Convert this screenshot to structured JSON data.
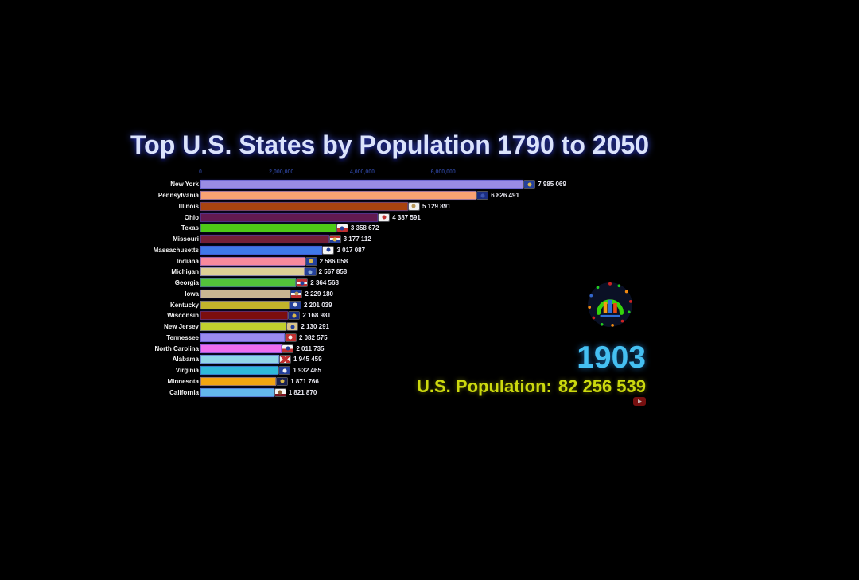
{
  "title": "Top U.S. States by Population 1790 to 2050",
  "overlay": {
    "year": "1903",
    "population_label": "U.S. Population:",
    "population_value": "82 256 539",
    "year_color": "#45c0f2",
    "population_color": "#ccd90e"
  },
  "icons": {
    "channel_logo": "bar-chart-circle-logo",
    "watermark": "play-badge"
  },
  "chart_data": {
    "type": "bar",
    "orientation": "horizontal",
    "title": "Top U.S. States by Population 1790 to 2050",
    "xlabel": "",
    "ylabel": "",
    "xlim": [
      0,
      8000000
    ],
    "grid": false,
    "legend": false,
    "x_ticks": [
      {
        "value": 0,
        "label": "0"
      },
      {
        "value": 2000000,
        "label": "2,000,000"
      },
      {
        "value": 4000000,
        "label": "4,000,000"
      },
      {
        "value": 6000000,
        "label": "6,000,000"
      }
    ],
    "bars": [
      {
        "state": "New York",
        "value": 7985069,
        "label": "7 985 069",
        "color": "#9a8ce4",
        "flag": {
          "stripes": [
            "#24409a"
          ],
          "emblem": "#d8b84a"
        }
      },
      {
        "state": "Pennsylvania",
        "value": 6826491,
        "label": "6 826 491",
        "color": "#f9a272",
        "flag": {
          "stripes": [
            "#1a2d80"
          ],
          "emblem": "#3c55b0"
        }
      },
      {
        "state": "Illinois",
        "value": 5129891,
        "label": "5 129 891",
        "color": "#a8430f",
        "flag": {
          "stripes": [
            "#f2f2f2"
          ],
          "emblem": "#b8985a"
        }
      },
      {
        "state": "Ohio",
        "value": 4387591,
        "label": "4 387 591",
        "color": "#621a50",
        "flag": {
          "stripes": [
            "#f2f2f2"
          ],
          "emblem": "#c03030"
        }
      },
      {
        "state": "Texas",
        "value": 3358672,
        "label": "3 358 672",
        "color": "#4ec917",
        "flag": {
          "stripes": [
            "#f5f5f5",
            "#c03030"
          ],
          "emblem": "#24409a"
        }
      },
      {
        "state": "Missouri",
        "value": 3177112,
        "label": "3 177 112",
        "color": "#731f38",
        "flag": {
          "stripes": [
            "#c03030",
            "#f5f5f5",
            "#24409a"
          ],
          "emblem": "#d8b84a"
        }
      },
      {
        "state": "Massachusetts",
        "value": 3017087,
        "label": "3 017 087",
        "color": "#3f78e8",
        "flag": {
          "stripes": [
            "#f5f5f5"
          ],
          "emblem": "#24409a"
        }
      },
      {
        "state": "Indiana",
        "value": 2586058,
        "label": "2 586 058",
        "color": "#f88a9c",
        "flag": {
          "stripes": [
            "#24409a"
          ],
          "emblem": "#d8b84a"
        }
      },
      {
        "state": "Michigan",
        "value": 2567858,
        "label": "2 567 858",
        "color": "#ddd096",
        "flag": {
          "stripes": [
            "#24409a"
          ],
          "emblem": "#8aa8d0"
        }
      },
      {
        "state": "Georgia",
        "value": 2364568,
        "label": "2 364 568",
        "color": "#52c23a",
        "flag": {
          "stripes": [
            "#c03030",
            "#f5f5f5",
            "#c03030"
          ],
          "emblem": "#24409a"
        }
      },
      {
        "state": "Iowa",
        "value": 2229180,
        "label": "2 229 180",
        "color": "#c9b691",
        "flag": {
          "stripes": [
            "#24409a",
            "#f5f5f5",
            "#c03030"
          ],
          "emblem": "#b8985a"
        }
      },
      {
        "state": "Kentucky",
        "value": 2201039,
        "label": "2 201 039",
        "color": "#c3b32b",
        "flag": {
          "stripes": [
            "#24409a"
          ],
          "emblem": "#e8e8e8"
        }
      },
      {
        "state": "Wisconsin",
        "value": 2168981,
        "label": "2 168 981",
        "color": "#7c0e0e",
        "flag": {
          "stripes": [
            "#1a2d80"
          ],
          "emblem": "#d8b84a"
        }
      },
      {
        "state": "New Jersey",
        "value": 2130291,
        "label": "2 130 291",
        "color": "#c0d02e",
        "flag": {
          "stripes": [
            "#d8c488"
          ],
          "emblem": "#24409a"
        }
      },
      {
        "state": "Tennessee",
        "value": 2082575,
        "label": "2 082 575",
        "color": "#9a8af0",
        "flag": {
          "stripes": [
            "#c03030"
          ],
          "emblem": "#f5f5f5"
        }
      },
      {
        "state": "North Carolina",
        "value": 2011735,
        "label": "2 011 735",
        "color": "#ee6cee",
        "flag": {
          "stripes": [
            "#f5f5f5",
            "#c03030"
          ],
          "emblem": "#24409a"
        }
      },
      {
        "state": "Alabama",
        "value": 1945459,
        "label": "1 945 459",
        "color": "#90d6e8",
        "flag": {
          "type": "saltire",
          "stripes": [
            "#f5f5f5"
          ],
          "emblem": "#c03030"
        }
      },
      {
        "state": "Virginia",
        "value": 1932465,
        "label": "1 932 465",
        "color": "#2fb9d9",
        "flag": {
          "stripes": [
            "#24409a"
          ],
          "emblem": "#f5f5f5"
        }
      },
      {
        "state": "Minnesota",
        "value": 1871766,
        "label": "1 871 766",
        "color": "#f2a512",
        "flag": {
          "stripes": [
            "#182050"
          ],
          "emblem": "#d8b84a"
        }
      },
      {
        "state": "California",
        "value": 1821870,
        "label": "1 821 870",
        "color": "#63b7ec",
        "flag": {
          "stripes": [
            "#f5f5f5",
            "#f5f5f5",
            "#7a1020"
          ],
          "emblem": "#8a5a30"
        }
      }
    ]
  }
}
